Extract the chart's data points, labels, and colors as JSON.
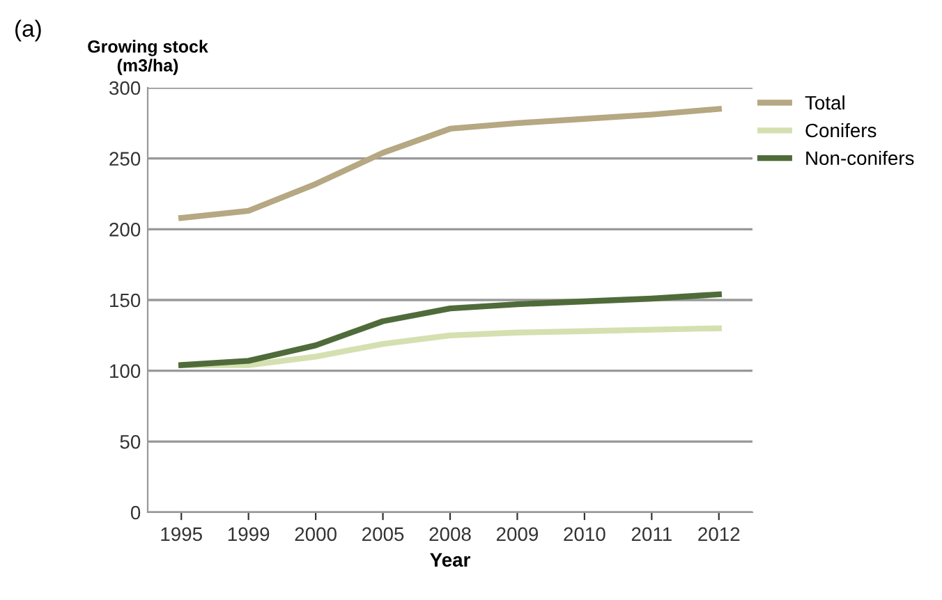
{
  "chart_data": {
    "type": "line",
    "ylabel": "Growing stock\n(m3/ha)",
    "xlabel": "Year",
    "annotations": [
      "(a)"
    ],
    "categories": [
      "1995",
      "1999",
      "2000",
      "2005",
      "2008",
      "2009",
      "2010",
      "2011",
      "2012"
    ],
    "series": [
      {
        "name": "Total",
        "color": "#b5a882",
        "values": [
          208,
          213,
          232,
          254,
          271,
          275,
          278,
          281,
          285
        ]
      },
      {
        "name": "Conifers",
        "color": "#d4e0b0",
        "values": [
          104,
          104,
          110,
          119,
          125,
          127,
          128,
          129,
          130
        ]
      },
      {
        "name": "Non-conifers",
        "color": "#4f6b3a",
        "values": [
          104,
          107,
          118,
          135,
          144,
          147,
          149,
          151,
          154
        ]
      }
    ],
    "ylim": [
      0,
      300
    ],
    "yticks": [
      0,
      50,
      100,
      150,
      200,
      250,
      300
    ],
    "grid": "y",
    "legend": "right",
    "marker": "none"
  }
}
